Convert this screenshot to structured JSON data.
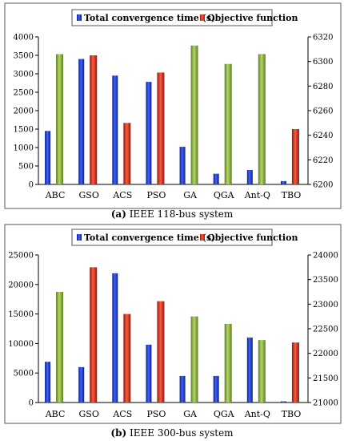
{
  "chart_data": [
    {
      "type": "bar",
      "caption_letter": "(a)",
      "caption_text": "IEEE 118-bus system",
      "categories": [
        "ABC",
        "GSO",
        "ACS",
        "PSO",
        "GA",
        "QGA",
        "Ant-Q",
        "TBO"
      ],
      "series": [
        {
          "name": "Total convergence time (s)",
          "axis": "left",
          "color": "#1f3fd0",
          "values": [
            1450,
            3400,
            2950,
            2780,
            1020,
            290,
            390,
            90
          ]
        },
        {
          "name": "Objective function",
          "axis": "right",
          "color": "#d23b2a",
          "values": [
            6306,
            6305,
            6250,
            6291,
            6313,
            6298,
            6306,
            6245
          ]
        }
      ],
      "left_ylim": [
        0,
        4000
      ],
      "left_ticks": [
        0,
        500,
        1000,
        1500,
        2000,
        2500,
        3000,
        3500,
        4000
      ],
      "right_ylim": [
        6200,
        6320
      ],
      "right_ticks": [
        6200,
        6220,
        6240,
        6260,
        6280,
        6300,
        6320
      ],
      "legend_position": "top",
      "grid": false
    },
    {
      "type": "bar",
      "caption_letter": "(b)",
      "caption_text": "IEEE 300-bus system",
      "categories": [
        "ABC",
        "GSO",
        "ACS",
        "PSO",
        "GA",
        "QGA",
        "Ant-Q",
        "TBO"
      ],
      "series": [
        {
          "name": "Total convergence time (s)",
          "axis": "left",
          "color": "#1f3fd0",
          "values": [
            6900,
            6000,
            21900,
            9800,
            4500,
            4500,
            11000,
            200
          ]
        },
        {
          "name": "Objective function",
          "axis": "right",
          "color": "#d23b2a",
          "values": [
            23250,
            23750,
            22800,
            23060,
            22750,
            22600,
            22270,
            22220
          ]
        }
      ],
      "left_ylim": [
        0,
        25000
      ],
      "left_ticks": [
        0,
        5000,
        10000,
        15000,
        20000,
        25000
      ],
      "right_ylim": [
        21000,
        24000
      ],
      "right_ticks": [
        21000,
        21500,
        22000,
        22500,
        23000,
        23500,
        24000
      ],
      "legend_position": "top",
      "grid": false
    }
  ]
}
